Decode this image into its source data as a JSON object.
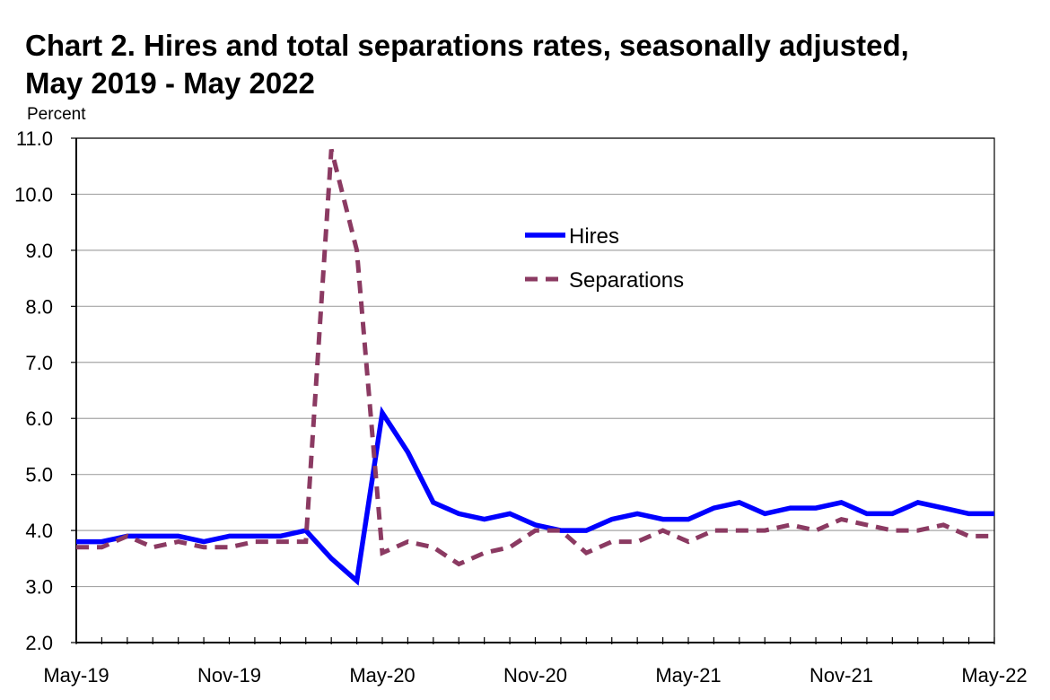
{
  "chart_data": {
    "type": "line",
    "title_line1": "Chart 2. Hires and total separations rates, seasonally adjusted,",
    "title_line2": "May 2019 - May 2022",
    "ylabel": "Percent",
    "xlabel": "",
    "ylim": [
      2.0,
      11.0
    ],
    "yticks": [
      "2.0",
      "3.0",
      "4.0",
      "5.0",
      "6.0",
      "7.0",
      "8.0",
      "9.0",
      "10.0",
      "11.0"
    ],
    "xtick_labels": [
      "May-19",
      "Nov-19",
      "May-20",
      "Nov-20",
      "May-21",
      "Nov-21",
      "May-22"
    ],
    "x": [
      "May-19",
      "Jun-19",
      "Jul-19",
      "Aug-19",
      "Sep-19",
      "Oct-19",
      "Nov-19",
      "Dec-19",
      "Jan-20",
      "Feb-20",
      "Mar-20",
      "Apr-20",
      "May-20",
      "Jun-20",
      "Jul-20",
      "Aug-20",
      "Sep-20",
      "Oct-20",
      "Nov-20",
      "Dec-20",
      "Jan-21",
      "Feb-21",
      "Mar-21",
      "Apr-21",
      "May-21",
      "Jun-21",
      "Jul-21",
      "Aug-21",
      "Sep-21",
      "Oct-21",
      "Nov-21",
      "Dec-21",
      "Jan-22",
      "Feb-22",
      "Mar-22",
      "Apr-22",
      "May-22"
    ],
    "grid": true,
    "legend_position": "upper-center",
    "series": [
      {
        "name": "Hires",
        "color": "#0000ff",
        "style": "solid",
        "values": [
          3.8,
          3.8,
          3.9,
          3.9,
          3.9,
          3.8,
          3.9,
          3.9,
          3.9,
          4.0,
          3.5,
          3.1,
          6.1,
          5.4,
          4.5,
          4.3,
          4.2,
          4.3,
          4.1,
          4.0,
          4.0,
          4.2,
          4.3,
          4.2,
          4.2,
          4.4,
          4.5,
          4.3,
          4.4,
          4.4,
          4.5,
          4.3,
          4.3,
          4.5,
          4.4,
          4.3,
          4.3
        ]
      },
      {
        "name": "Separations",
        "color": "#8b3a62",
        "style": "dashed",
        "values": [
          3.7,
          3.7,
          3.9,
          3.7,
          3.8,
          3.7,
          3.7,
          3.8,
          3.8,
          3.8,
          10.8,
          9.0,
          3.6,
          3.8,
          3.7,
          3.4,
          3.6,
          3.7,
          4.0,
          4.0,
          3.6,
          3.8,
          3.8,
          4.0,
          3.8,
          4.0,
          4.0,
          4.0,
          4.1,
          4.0,
          4.2,
          4.1,
          4.0,
          4.0,
          4.1,
          3.9,
          3.9
        ]
      }
    ]
  }
}
